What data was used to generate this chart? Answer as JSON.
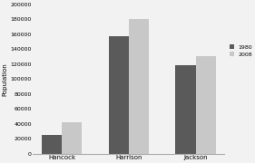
{
  "categories": [
    "Hancock",
    "Harrison",
    "Jackson"
  ],
  "series": {
    "1980": [
      25000,
      157000,
      118000
    ],
    "2008": [
      42000,
      180000,
      131000
    ]
  },
  "bar_colors": {
    "1980": "#5a5a5a",
    "2008": "#c8c8c8"
  },
  "ylabel": "Population",
  "ylim": [
    0,
    200000
  ],
  "yticks": [
    0,
    20000,
    40000,
    60000,
    80000,
    100000,
    120000,
    140000,
    160000,
    180000,
    200000
  ],
  "legend_labels": [
    "1980",
    "2008"
  ],
  "bar_width": 0.3,
  "background_color": "#f2f2f2"
}
